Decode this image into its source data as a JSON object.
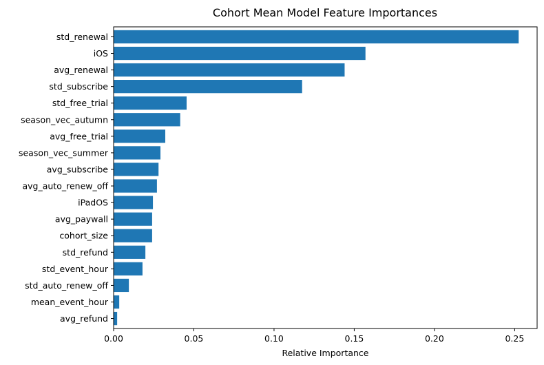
{
  "chart_data": {
    "type": "bar",
    "orientation": "horizontal",
    "title": "Cohort Mean Model Feature Importances",
    "xlabel": "Relative Importance",
    "ylabel": "",
    "xlim": [
      0,
      0.264
    ],
    "xticks": [
      0.0,
      0.05,
      0.1,
      0.15,
      0.2,
      0.25
    ],
    "xtick_labels": [
      "0.00",
      "0.05",
      "0.10",
      "0.15",
      "0.20",
      "0.25"
    ],
    "grid": false,
    "bar_color": "#1f77b4",
    "categories": [
      "std_renewal",
      "iOS",
      "avg_renewal",
      "std_subscribe",
      "std_free_trial",
      "season_vec_autumn",
      "avg_free_trial",
      "season_vec_summer",
      "avg_subscribe",
      "avg_auto_renew_off",
      "iPadOS",
      "avg_paywall",
      "cohort_size",
      "std_refund",
      "std_event_hour",
      "std_auto_renew_off",
      "mean_event_hour",
      "avg_refund"
    ],
    "values": [
      0.2525,
      0.157,
      0.144,
      0.1175,
      0.0455,
      0.0415,
      0.0322,
      0.0292,
      0.028,
      0.027,
      0.0245,
      0.024,
      0.024,
      0.0198,
      0.018,
      0.0095,
      0.0035,
      0.0022
    ]
  }
}
